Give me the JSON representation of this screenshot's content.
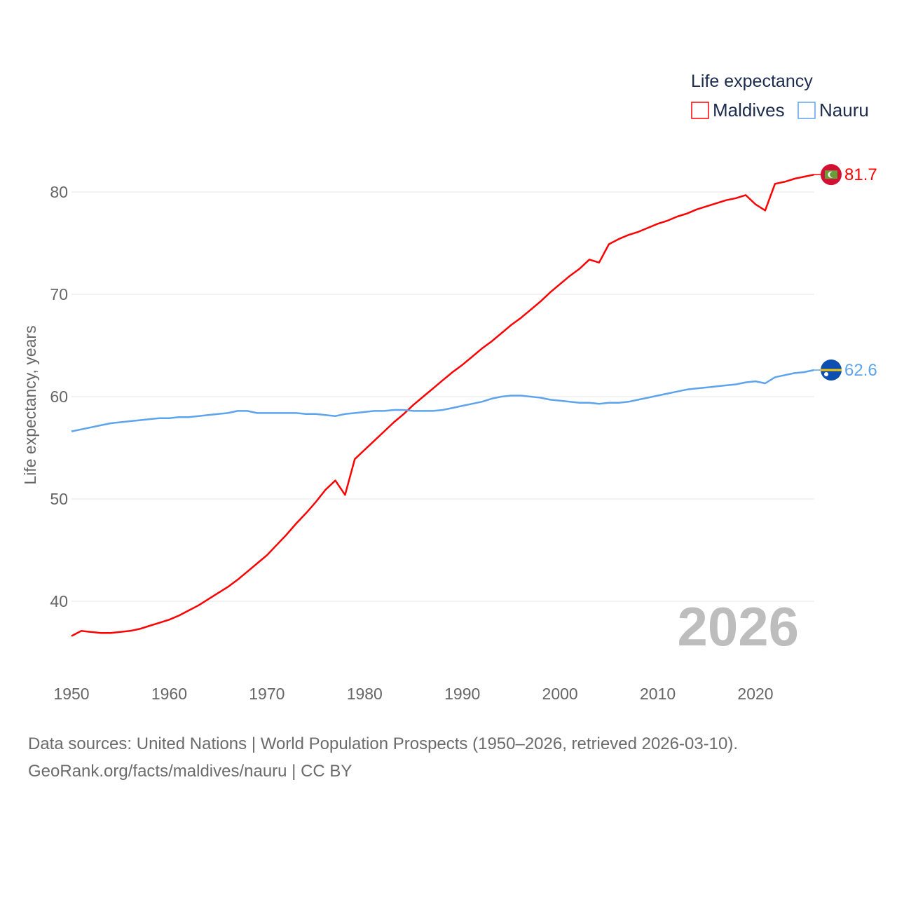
{
  "chart_data": {
    "type": "line",
    "title": "",
    "xlabel": "",
    "ylabel": "Life expectancy, years",
    "xlim": [
      1950,
      2026
    ],
    "ylim": [
      35,
      85
    ],
    "x_ticks": [
      "1950",
      "1960",
      "1970",
      "1980",
      "1990",
      "2000",
      "2010",
      "2020"
    ],
    "y_ticks": [
      "40",
      "50",
      "60",
      "70",
      "80"
    ],
    "grid": true,
    "legend": {
      "title": "Life expectancy",
      "placement": "top-right"
    },
    "current_year": "2026",
    "series": [
      {
        "name": "Maldives",
        "color": "#ff0000",
        "end_label": "81.7",
        "flag": "maldives-flag",
        "points": [
          [
            1950,
            36.6
          ],
          [
            1951,
            37.1
          ],
          [
            1952,
            37.0
          ],
          [
            1953,
            36.9
          ],
          [
            1954,
            36.9
          ],
          [
            1955,
            37.0
          ],
          [
            1956,
            37.1
          ],
          [
            1957,
            37.3
          ],
          [
            1958,
            37.6
          ],
          [
            1959,
            37.9
          ],
          [
            1960,
            38.2
          ],
          [
            1961,
            38.6
          ],
          [
            1962,
            39.1
          ],
          [
            1963,
            39.6
          ],
          [
            1964,
            40.2
          ],
          [
            1965,
            40.8
          ],
          [
            1966,
            41.4
          ],
          [
            1967,
            42.1
          ],
          [
            1968,
            42.9
          ],
          [
            1969,
            43.7
          ],
          [
            1970,
            44.5
          ],
          [
            1971,
            45.5
          ],
          [
            1972,
            46.5
          ],
          [
            1973,
            47.6
          ],
          [
            1974,
            48.6
          ],
          [
            1975,
            49.7
          ],
          [
            1976,
            50.9
          ],
          [
            1977,
            51.8
          ],
          [
            1978,
            50.4
          ],
          [
            1979,
            53.9
          ],
          [
            1980,
            54.8
          ],
          [
            1981,
            55.7
          ],
          [
            1982,
            56.6
          ],
          [
            1983,
            57.5
          ],
          [
            1984,
            58.3
          ],
          [
            1985,
            59.2
          ],
          [
            1986,
            60.0
          ],
          [
            1987,
            60.8
          ],
          [
            1988,
            61.6
          ],
          [
            1989,
            62.4
          ],
          [
            1990,
            63.1
          ],
          [
            1991,
            63.9
          ],
          [
            1992,
            64.7
          ],
          [
            1993,
            65.4
          ],
          [
            1994,
            66.2
          ],
          [
            1995,
            67.0
          ],
          [
            1996,
            67.7
          ],
          [
            1997,
            68.5
          ],
          [
            1998,
            69.3
          ],
          [
            1999,
            70.2
          ],
          [
            2000,
            71.0
          ],
          [
            2001,
            71.8
          ],
          [
            2002,
            72.5
          ],
          [
            2003,
            73.4
          ],
          [
            2004,
            73.1
          ],
          [
            2005,
            74.9
          ],
          [
            2006,
            75.4
          ],
          [
            2007,
            75.8
          ],
          [
            2008,
            76.1
          ],
          [
            2009,
            76.5
          ],
          [
            2010,
            76.9
          ],
          [
            2011,
            77.2
          ],
          [
            2012,
            77.6
          ],
          [
            2013,
            77.9
          ],
          [
            2014,
            78.3
          ],
          [
            2015,
            78.6
          ],
          [
            2016,
            78.9
          ],
          [
            2017,
            79.2
          ],
          [
            2018,
            79.4
          ],
          [
            2019,
            79.7
          ],
          [
            2020,
            78.8
          ],
          [
            2021,
            78.2
          ],
          [
            2022,
            80.8
          ],
          [
            2023,
            81.0
          ],
          [
            2024,
            81.3
          ],
          [
            2025,
            81.5
          ],
          [
            2026,
            81.7
          ]
        ]
      },
      {
        "name": "Nauru",
        "color": "#5ea4ec",
        "end_label": "62.6",
        "flag": "nauru-flag",
        "points": [
          [
            1950,
            56.6
          ],
          [
            1951,
            56.8
          ],
          [
            1952,
            57.0
          ],
          [
            1953,
            57.2
          ],
          [
            1954,
            57.4
          ],
          [
            1955,
            57.5
          ],
          [
            1956,
            57.6
          ],
          [
            1957,
            57.7
          ],
          [
            1958,
            57.8
          ],
          [
            1959,
            57.9
          ],
          [
            1960,
            57.9
          ],
          [
            1961,
            58.0
          ],
          [
            1962,
            58.0
          ],
          [
            1963,
            58.1
          ],
          [
            1964,
            58.2
          ],
          [
            1965,
            58.3
          ],
          [
            1966,
            58.4
          ],
          [
            1967,
            58.6
          ],
          [
            1968,
            58.6
          ],
          [
            1969,
            58.4
          ],
          [
            1970,
            58.4
          ],
          [
            1971,
            58.4
          ],
          [
            1972,
            58.4
          ],
          [
            1973,
            58.4
          ],
          [
            1974,
            58.3
          ],
          [
            1975,
            58.3
          ],
          [
            1976,
            58.2
          ],
          [
            1977,
            58.1
          ],
          [
            1978,
            58.3
          ],
          [
            1979,
            58.4
          ],
          [
            1980,
            58.5
          ],
          [
            1981,
            58.6
          ],
          [
            1982,
            58.6
          ],
          [
            1983,
            58.7
          ],
          [
            1984,
            58.7
          ],
          [
            1985,
            58.6
          ],
          [
            1986,
            58.6
          ],
          [
            1987,
            58.6
          ],
          [
            1988,
            58.7
          ],
          [
            1989,
            58.9
          ],
          [
            1990,
            59.1
          ],
          [
            1991,
            59.3
          ],
          [
            1992,
            59.5
          ],
          [
            1993,
            59.8
          ],
          [
            1994,
            60.0
          ],
          [
            1995,
            60.1
          ],
          [
            1996,
            60.1
          ],
          [
            1997,
            60.0
          ],
          [
            1998,
            59.9
          ],
          [
            1999,
            59.7
          ],
          [
            2000,
            59.6
          ],
          [
            2001,
            59.5
          ],
          [
            2002,
            59.4
          ],
          [
            2003,
            59.4
          ],
          [
            2004,
            59.3
          ],
          [
            2005,
            59.4
          ],
          [
            2006,
            59.4
          ],
          [
            2007,
            59.5
          ],
          [
            2008,
            59.7
          ],
          [
            2009,
            59.9
          ],
          [
            2010,
            60.1
          ],
          [
            2011,
            60.3
          ],
          [
            2012,
            60.5
          ],
          [
            2013,
            60.7
          ],
          [
            2014,
            60.8
          ],
          [
            2015,
            60.9
          ],
          [
            2016,
            61.0
          ],
          [
            2017,
            61.1
          ],
          [
            2018,
            61.2
          ],
          [
            2019,
            61.4
          ],
          [
            2020,
            61.5
          ],
          [
            2021,
            61.3
          ],
          [
            2022,
            61.9
          ],
          [
            2023,
            62.1
          ],
          [
            2024,
            62.3
          ],
          [
            2025,
            62.4
          ],
          [
            2026,
            62.6
          ]
        ]
      }
    ]
  },
  "footer": {
    "line1": "Data sources: United Nations | World Population Prospects (1950–2026, retrieved 2026-03-10).",
    "line2": "GeoRank.org/facts/maldives/nauru | CC BY"
  }
}
